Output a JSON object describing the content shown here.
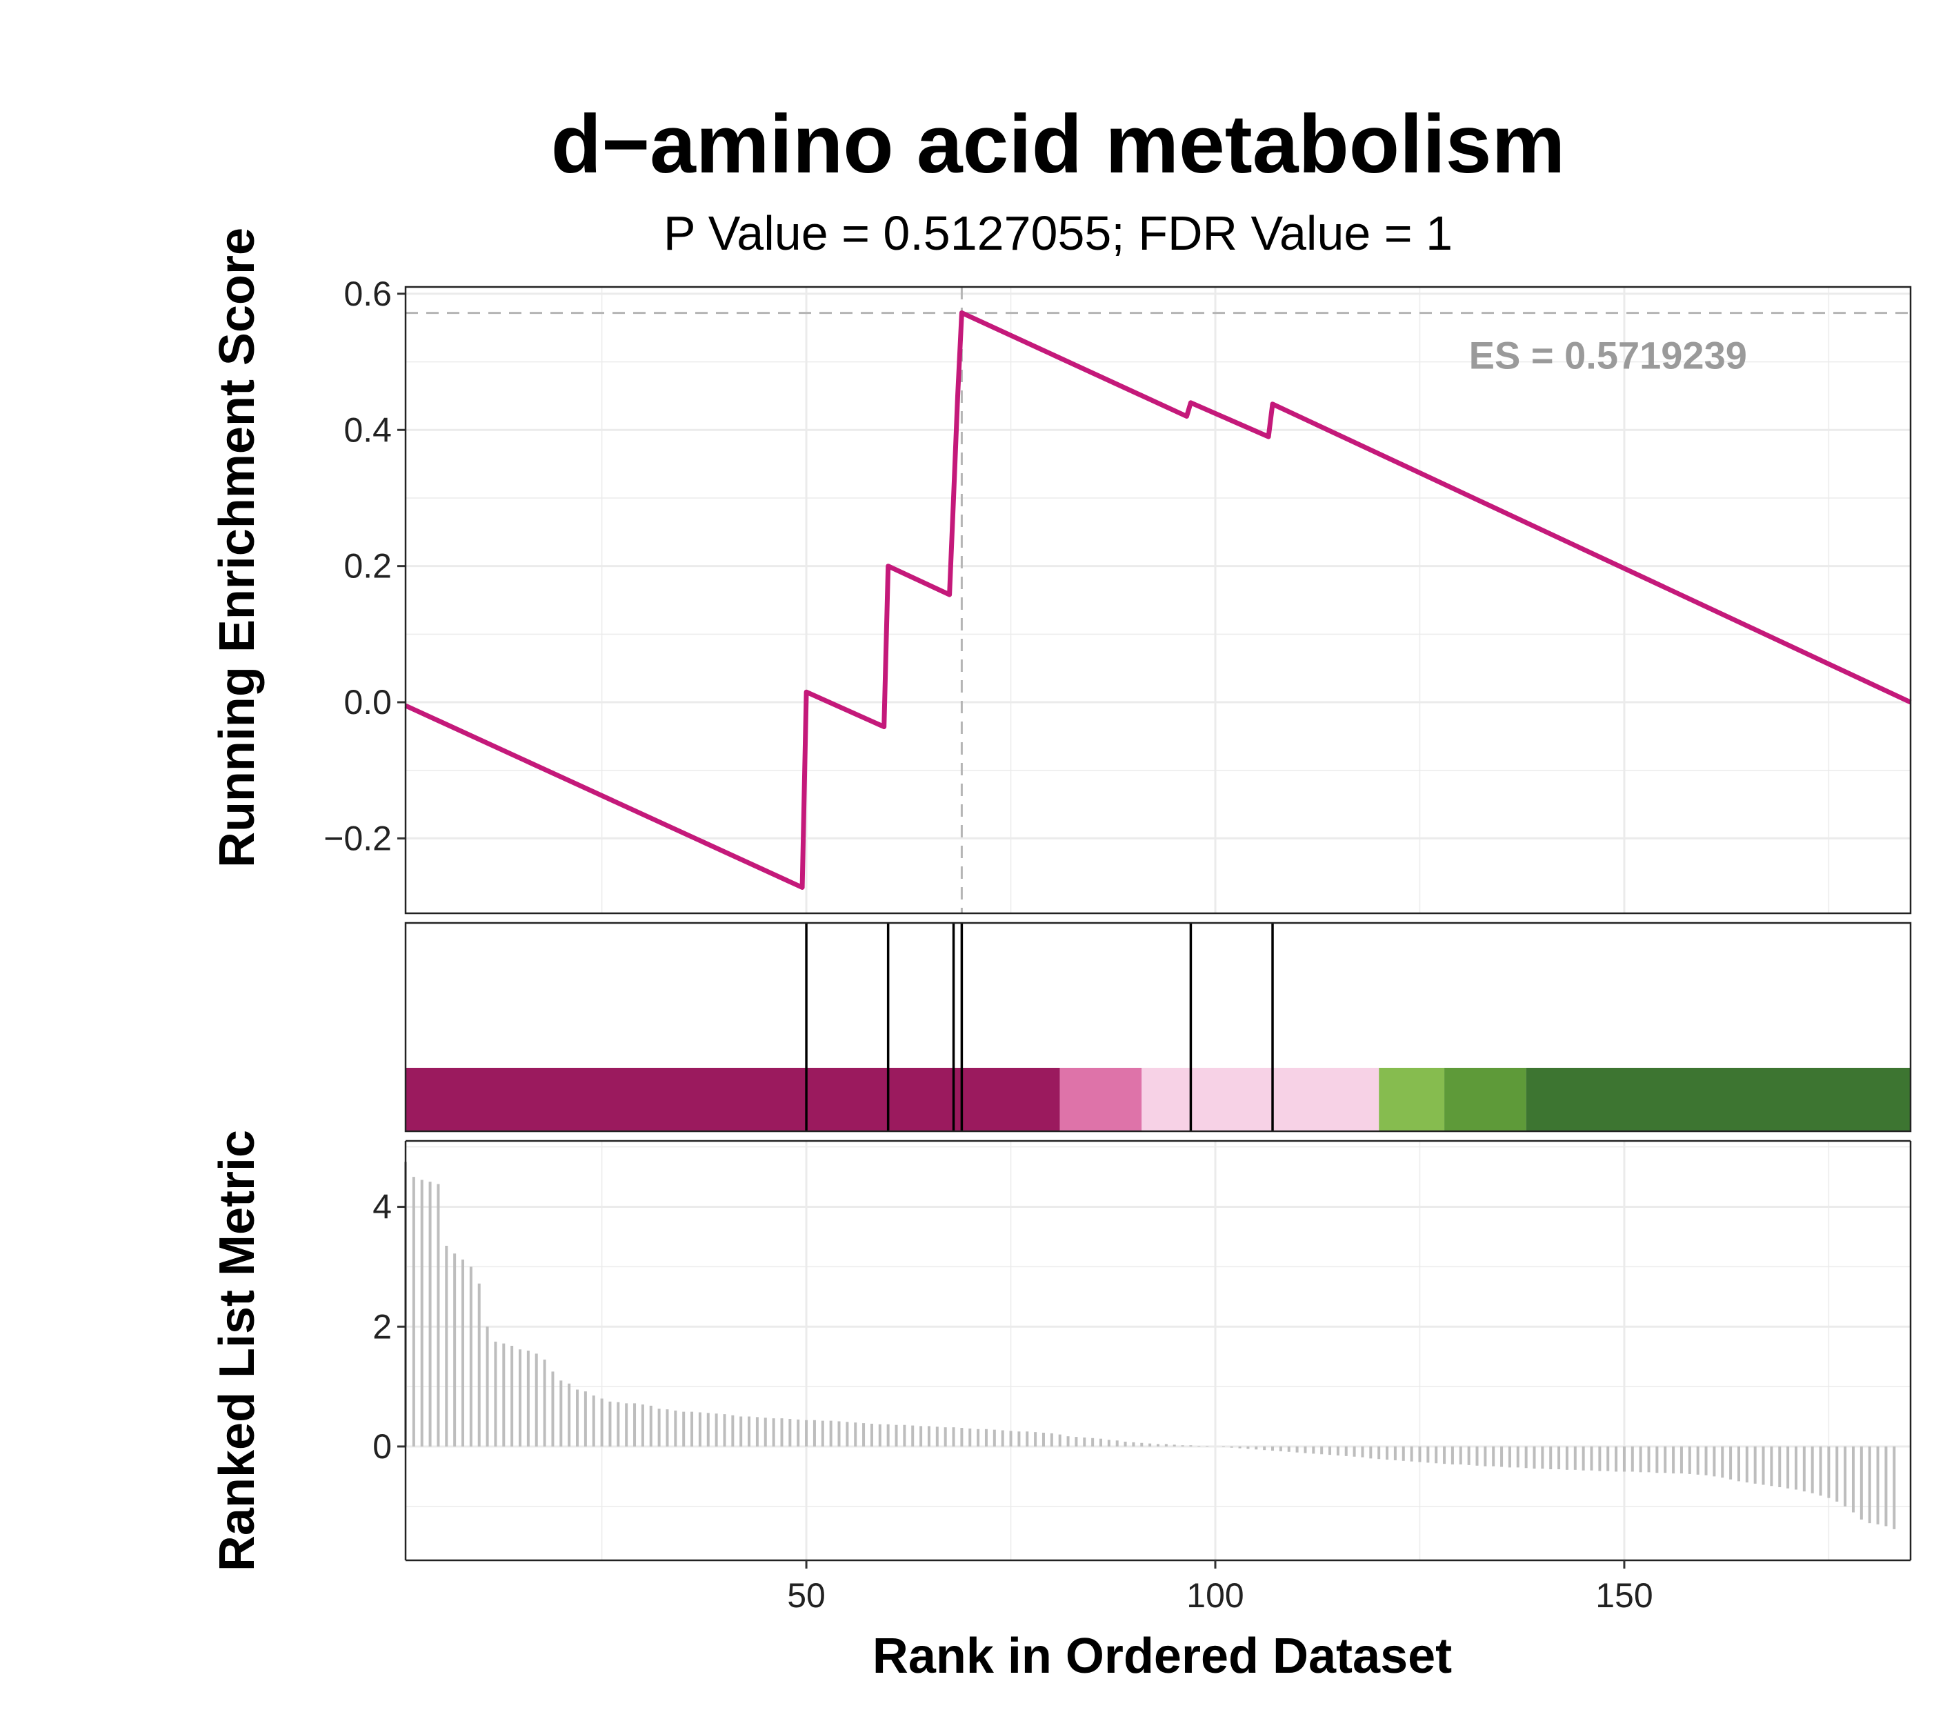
{
  "chart_data": {
    "type": "line",
    "title": "d−amino acid metabolism",
    "subtitle": "P Value = 0.5127055; FDR Value = 1",
    "xlabel": "Rank in Ordered Dataset",
    "es_label": "ES = 0.5719239",
    "xlim": [
      1,
      185
    ],
    "x_ticks": [
      "50",
      "100",
      "150"
    ],
    "panels": [
      {
        "name": "running_es",
        "ylabel": "Running Enrichment Score",
        "ylim": [
          -0.31,
          0.61
        ],
        "y_ticks": [
          "−0.2",
          "0.0",
          "0.2",
          "0.4",
          "0.6"
        ],
        "es": 0.5719239,
        "peak_rank": 69,
        "x": [
          1,
          49.5,
          50,
          59.5,
          60,
          67.5,
          68,
          68.5,
          69,
          96.5,
          97,
          106.5,
          107,
          185
        ],
        "y": [
          -0.005,
          -0.272,
          0.015,
          -0.036,
          0.2,
          0.158,
          0.3,
          0.45,
          0.572,
          0.42,
          0.44,
          0.39,
          0.438,
          0.0
        ]
      },
      {
        "name": "gene_hits",
        "hits": [
          50,
          60,
          68,
          69,
          97,
          107
        ],
        "color_bands": [
          {
            "from": 1,
            "to": 81,
            "color": "#9b1a5e"
          },
          {
            "from": 81,
            "to": 91,
            "color": "#de73a9"
          },
          {
            "from": 91,
            "to": 120,
            "color": "#f7d2e6"
          },
          {
            "from": 120,
            "to": 128,
            "color": "#86bc4f"
          },
          {
            "from": 128,
            "to": 138,
            "color": "#5e9a39"
          },
          {
            "from": 138,
            "to": 185,
            "color": "#3d7531"
          }
        ]
      },
      {
        "name": "ranked_metric",
        "ylabel": "Ranked List Metric",
        "ylim": [
          -1.9,
          5.1
        ],
        "y_ticks": [
          "0",
          "2",
          "4"
        ],
        "values": [
          4.75,
          4.5,
          4.45,
          4.42,
          4.38,
          3.35,
          3.22,
          3.12,
          3.0,
          2.72,
          2.0,
          1.75,
          1.72,
          1.68,
          1.62,
          1.6,
          1.55,
          1.45,
          1.25,
          1.1,
          1.05,
          0.95,
          0.92,
          0.85,
          0.8,
          0.75,
          0.74,
          0.72,
          0.72,
          0.7,
          0.68,
          0.63,
          0.62,
          0.6,
          0.58,
          0.58,
          0.57,
          0.56,
          0.55,
          0.54,
          0.52,
          0.5,
          0.5,
          0.49,
          0.48,
          0.47,
          0.47,
          0.46,
          0.45,
          0.44,
          0.44,
          0.43,
          0.43,
          0.42,
          0.41,
          0.4,
          0.39,
          0.38,
          0.37,
          0.37,
          0.36,
          0.36,
          0.35,
          0.34,
          0.34,
          0.33,
          0.32,
          0.32,
          0.31,
          0.3,
          0.29,
          0.29,
          0.28,
          0.27,
          0.26,
          0.25,
          0.25,
          0.24,
          0.23,
          0.22,
          0.2,
          0.17,
          0.16,
          0.15,
          0.14,
          0.13,
          0.11,
          0.1,
          0.08,
          0.07,
          0.06,
          0.05,
          0.04,
          0.04,
          0.03,
          0.02,
          0.02,
          0.01,
          0.01,
          0.0,
          -0.01,
          -0.02,
          -0.03,
          -0.04,
          -0.05,
          -0.06,
          -0.07,
          -0.08,
          -0.09,
          -0.1,
          -0.11,
          -0.12,
          -0.13,
          -0.14,
          -0.15,
          -0.16,
          -0.17,
          -0.18,
          -0.2,
          -0.21,
          -0.22,
          -0.23,
          -0.24,
          -0.25,
          -0.26,
          -0.27,
          -0.28,
          -0.29,
          -0.3,
          -0.3,
          -0.31,
          -0.32,
          -0.33,
          -0.33,
          -0.34,
          -0.35,
          -0.35,
          -0.36,
          -0.37,
          -0.37,
          -0.38,
          -0.38,
          -0.39,
          -0.39,
          -0.4,
          -0.4,
          -0.41,
          -0.41,
          -0.42,
          -0.42,
          -0.42,
          -0.43,
          -0.43,
          -0.44,
          -0.44,
          -0.45,
          -0.45,
          -0.46,
          -0.47,
          -0.48,
          -0.5,
          -0.52,
          -0.55,
          -0.58,
          -0.6,
          -0.62,
          -0.64,
          -0.66,
          -0.68,
          -0.7,
          -0.72,
          -0.75,
          -0.78,
          -0.82,
          -0.86,
          -0.92,
          -1.0,
          -1.1,
          -1.22,
          -1.28,
          -1.3,
          -1.33,
          -1.38
        ]
      }
    ],
    "colors": {
      "es_line": "#c4197a",
      "reference_line": "#b5b5b5",
      "metric_bars": "#bdbdbd",
      "hit_lines": "#000000",
      "grid": "#ebebeb"
    }
  }
}
